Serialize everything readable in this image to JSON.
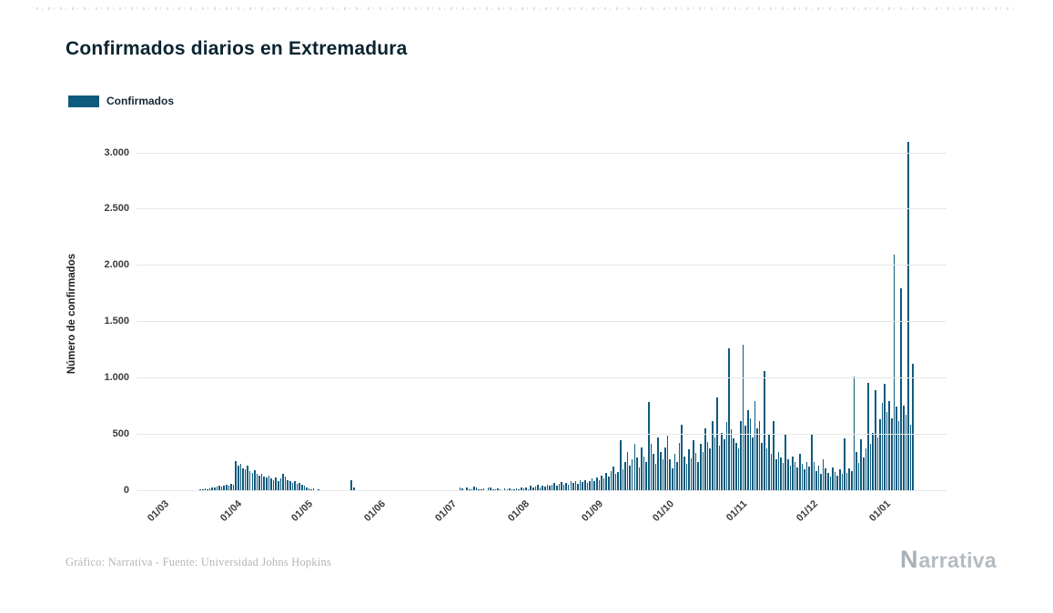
{
  "chart_data": {
    "type": "bar",
    "title": "Confirmados diarios en Extremadura",
    "legend": [
      "Confirmados"
    ],
    "xlabel": "",
    "ylabel": "Número de confirmados",
    "grid": "horizontal",
    "legend_position": "top-left",
    "bar_color": "#0e5a7d",
    "ylim": [
      0,
      3150
    ],
    "y_ticks": [
      {
        "value": 0,
        "label": "0"
      },
      {
        "value": 500,
        "label": "500"
      },
      {
        "value": 1000,
        "label": "1.000"
      },
      {
        "value": 1500,
        "label": "1.500"
      },
      {
        "value": 2000,
        "label": "2.000"
      },
      {
        "value": 2500,
        "label": "2.500"
      },
      {
        "value": 3000,
        "label": "3.000"
      }
    ],
    "x_tick_labels": [
      "01/03",
      "01/04",
      "01/05",
      "01/06",
      "01/07",
      "01/08",
      "01/09",
      "01/10",
      "01/11",
      "01/12",
      "01/01"
    ],
    "month_start_indices": [
      0,
      31,
      61,
      92,
      122,
      153,
      184,
      214,
      245,
      275,
      306
    ],
    "values": [
      0,
      0,
      1,
      0,
      2,
      1,
      2,
      3,
      2,
      4,
      3,
      5,
      8,
      6,
      10,
      12,
      15,
      18,
      22,
      20,
      28,
      32,
      30,
      38,
      45,
      40,
      52,
      58,
      50,
      62,
      55,
      270,
      225,
      245,
      205,
      190,
      230,
      175,
      160,
      185,
      150,
      140,
      155,
      130,
      120,
      135,
      110,
      100,
      120,
      90,
      115,
      150,
      130,
      95,
      85,
      75,
      90,
      65,
      70,
      55,
      45,
      30,
      22,
      18,
      25,
      12,
      15,
      10,
      8,
      6,
      10,
      5,
      4,
      6,
      8,
      5,
      3,
      4,
      2,
      5,
      95,
      35,
      12,
      6,
      4,
      3,
      2,
      3,
      1,
      2,
      1,
      1,
      0,
      1,
      0,
      0,
      1,
      0,
      0,
      2,
      1,
      0,
      0,
      1,
      0,
      0,
      0,
      1,
      0,
      0,
      2,
      0,
      1,
      0,
      0,
      1,
      0,
      0,
      0,
      1,
      0,
      2,
      2,
      3,
      5,
      8,
      30,
      25,
      12,
      35,
      20,
      15,
      40,
      30,
      20,
      15,
      25,
      10,
      35,
      30,
      15,
      20,
      25,
      18,
      12,
      22,
      15,
      28,
      20,
      15,
      25,
      18,
      30,
      25,
      35,
      20,
      45,
      30,
      40,
      55,
      35,
      50,
      40,
      60,
      45,
      55,
      70,
      50,
      65,
      80,
      60,
      75,
      55,
      90,
      70,
      85,
      65,
      95,
      80,
      100,
      75,
      90,
      110,
      85,
      120,
      95,
      140,
      110,
      160,
      130,
      180,
      220,
      150,
      170,
      450,
      190,
      260,
      350,
      230,
      280,
      420,
      300,
      210,
      390,
      310,
      260,
      790,
      420,
      330,
      240,
      480,
      350,
      280,
      390,
      490,
      280,
      200,
      330,
      260,
      430,
      590,
      310,
      240,
      370,
      290,
      450,
      340,
      260,
      420,
      350,
      560,
      440,
      380,
      620,
      480,
      830,
      400,
      520,
      460,
      610,
      1270,
      550,
      470,
      430,
      380,
      620,
      1300,
      580,
      720,
      650,
      480,
      800,
      560,
      620,
      430,
      1070,
      380,
      500,
      330,
      620,
      280,
      350,
      300,
      250,
      510,
      280,
      230,
      310,
      260,
      210,
      330,
      240,
      190,
      260,
      220,
      500,
      260,
      180,
      230,
      150,
      280,
      200,
      160,
      130,
      210,
      170,
      140,
      190,
      150,
      470,
      160,
      200,
      180,
      1020,
      350,
      250,
      460,
      300,
      380,
      960,
      420,
      520,
      900,
      480,
      640,
      780,
      950,
      700,
      800,
      650,
      2100,
      750,
      620,
      1800,
      760,
      680,
      3100,
      590,
      1130
    ]
  },
  "footer": {
    "credit": "Gráfico: Narrativa - Fuente: Universidad Johns Hopkins",
    "logo_icon": "N",
    "logo_text": "arrativa"
  },
  "colors": {
    "bar": "#0e5a7d",
    "title": "#0b2431",
    "grid": "#e6e6e6",
    "axis_text": "#3c3c3c",
    "muted_text": "#b5b5b5",
    "logo": "#b4bbc1"
  }
}
